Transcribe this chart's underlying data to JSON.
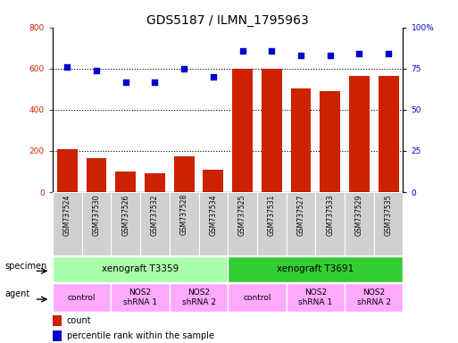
{
  "title": "GDS5187 / ILMN_1795963",
  "samples": [
    "GSM737524",
    "GSM737530",
    "GSM737526",
    "GSM737532",
    "GSM737528",
    "GSM737534",
    "GSM737525",
    "GSM737531",
    "GSM737527",
    "GSM737533",
    "GSM737529",
    "GSM737535"
  ],
  "bar_values": [
    210,
    163,
    100,
    90,
    175,
    110,
    600,
    600,
    503,
    490,
    563,
    563
  ],
  "dot_values": [
    76,
    74,
    67,
    67,
    75,
    70,
    86,
    86,
    83,
    83,
    84,
    84
  ],
  "bar_color": "#cc2200",
  "dot_color": "#0000cc",
  "ylim_left": [
    0,
    800
  ],
  "yticks_left": [
    0,
    200,
    400,
    600,
    800
  ],
  "yticks_right": [
    0,
    25,
    50,
    75,
    100
  ],
  "ytick_labels_right": [
    "0",
    "25",
    "50",
    "75",
    "100%"
  ],
  "grid_values": [
    200,
    400,
    600
  ],
  "specimen_labels": [
    "xenograft T3359",
    "xenograft T3691"
  ],
  "specimen_spans": [
    [
      0,
      5
    ],
    [
      6,
      11
    ]
  ],
  "specimen_color_left": "#aaffaa",
  "specimen_color_right": "#33cc33",
  "agent_groups": [
    {
      "label": "control",
      "span": [
        0,
        1
      ],
      "color": "#ffaaff"
    },
    {
      "label": "NOS2\nshRNA 1",
      "span": [
        2,
        3
      ],
      "color": "#ffaaff"
    },
    {
      "label": "NOS2\nshRNA 2",
      "span": [
        4,
        5
      ],
      "color": "#ffaaff"
    },
    {
      "label": "control",
      "span": [
        6,
        7
      ],
      "color": "#ffaaff"
    },
    {
      "label": "NOS2\nshRNA 1",
      "span": [
        8,
        9
      ],
      "color": "#ffaaff"
    },
    {
      "label": "NOS2\nshRNA 2",
      "span": [
        10,
        11
      ],
      "color": "#ffaaff"
    }
  ],
  "legend_count_label": "count",
  "legend_pct_label": "percentile rank within the sample",
  "title_fontsize": 10,
  "tick_fontsize": 6.5,
  "sample_label_fontsize": 5.5,
  "row_label_fontsize": 7,
  "specimen_fontsize": 7.5,
  "agent_fontsize": 6.5,
  "legend_fontsize": 7
}
